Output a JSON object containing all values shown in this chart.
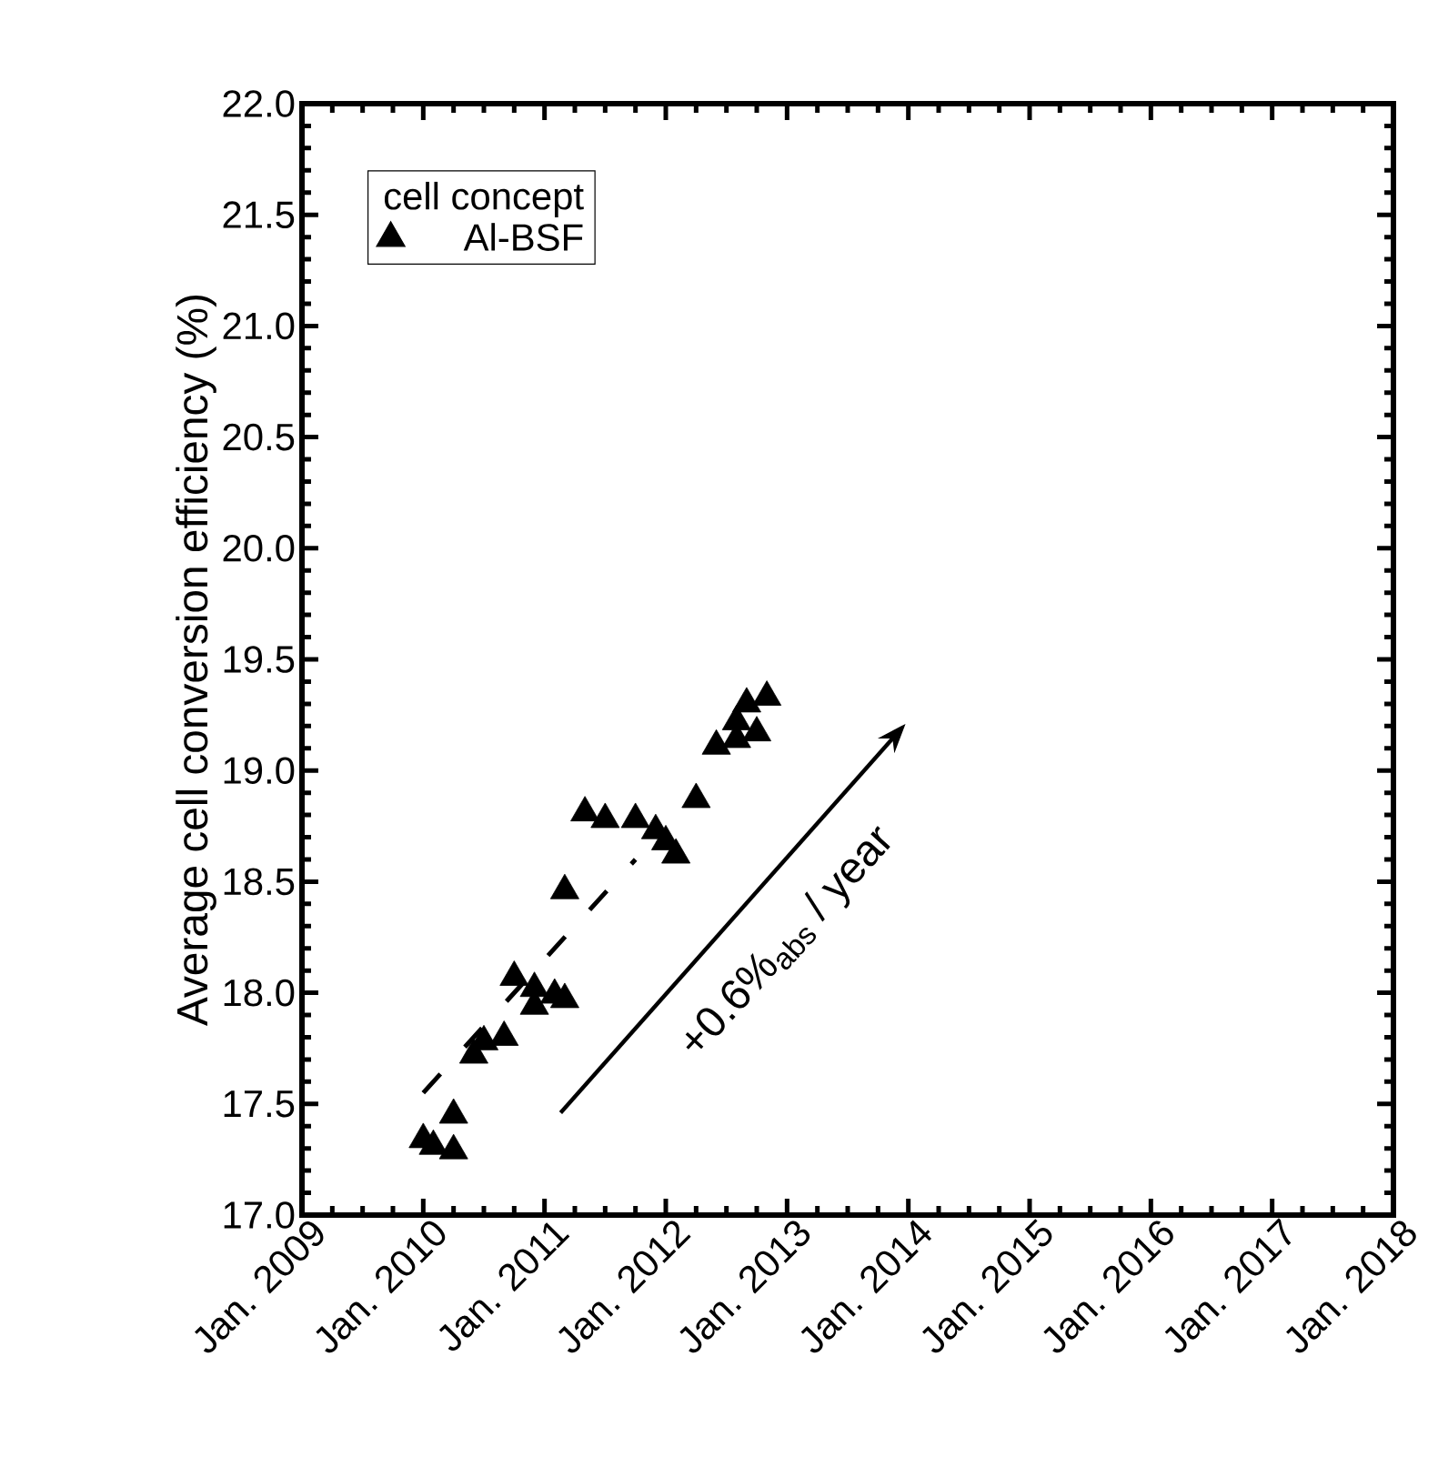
{
  "chart_data": {
    "type": "scatter",
    "ylabel": "Average cell conversion efficiency (%)",
    "legend_title": "cell concept",
    "legend": "top left",
    "grid": false,
    "xlim": [
      "2009-01",
      "2018-01"
    ],
    "ylim": [
      17.0,
      22.0
    ],
    "xticks": [
      {
        "value": "2009-01",
        "label": "Jan. 2009"
      },
      {
        "value": "2010-01",
        "label": "Jan. 2010"
      },
      {
        "value": "2011-01",
        "label": "Jan. 2011"
      },
      {
        "value": "2012-01",
        "label": "Jan. 2012"
      },
      {
        "value": "2013-01",
        "label": "Jan. 2013"
      },
      {
        "value": "2014-01",
        "label": "Jan. 2014"
      },
      {
        "value": "2015-01",
        "label": "Jan. 2015"
      },
      {
        "value": "2016-01",
        "label": "Jan. 2016"
      },
      {
        "value": "2017-01",
        "label": "Jan. 2017"
      },
      {
        "value": "2018-01",
        "label": "Jan. 2018"
      }
    ],
    "yticks": [
      {
        "value": 17.0,
        "label": "17.0"
      },
      {
        "value": 17.5,
        "label": "17.5"
      },
      {
        "value": 18.0,
        "label": "18.0"
      },
      {
        "value": 18.5,
        "label": "18.5"
      },
      {
        "value": 19.0,
        "label": "19.0"
      },
      {
        "value": 19.5,
        "label": "19.5"
      },
      {
        "value": 20.0,
        "label": "20.0"
      },
      {
        "value": 20.5,
        "label": "20.5"
      },
      {
        "value": 21.0,
        "label": "21.0"
      },
      {
        "value": 21.5,
        "label": "21.5"
      },
      {
        "value": 22.0,
        "label": "22.0"
      }
    ],
    "annotations": [
      "+0.6%$_{abs}$ / year"
    ],
    "series": [
      {
        "name": "Al-BSF",
        "marker": "triangle",
        "color": "#000000",
        "x": [
          "2010-01",
          "2010-02",
          "2010-04",
          "2010-04",
          "2010-06",
          "2010-07",
          "2010-09",
          "2010-10",
          "2010-12",
          "2010-12",
          "2011-02",
          "2011-03",
          "2011-03",
          "2011-05",
          "2011-07",
          "2011-10",
          "2011-12",
          "2012-01",
          "2012-02",
          "2012-04",
          "2012-06",
          "2012-08",
          "2012-08",
          "2012-09",
          "2012-10",
          "2012-11"
        ],
        "values": [
          17.34,
          17.31,
          17.29,
          17.45,
          17.72,
          17.78,
          17.8,
          18.07,
          17.94,
          18.02,
          17.99,
          17.97,
          18.46,
          18.81,
          18.78,
          18.78,
          18.73,
          18.68,
          18.62,
          18.87,
          19.11,
          19.22,
          19.14,
          19.3,
          19.17,
          19.33
        ]
      },
      {
        "type": "line",
        "line_style": "dashed",
        "marker": "none",
        "color": "#000000",
        "x": [
          "2010-01",
          "2011-10"
        ],
        "values": [
          17.55,
          18.6
        ]
      }
    ]
  }
}
